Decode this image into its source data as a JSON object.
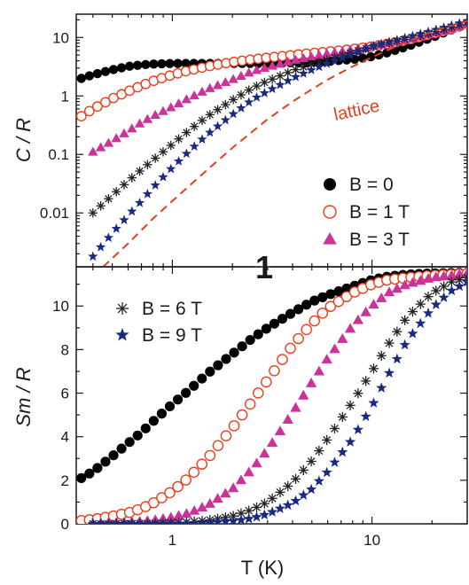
{
  "chart_data": [
    {
      "type": "scatter",
      "ylabel": "C / R",
      "yscale": "log",
      "xscale": "log",
      "xlim": [
        0.33,
        30
      ],
      "ylim": [
        0.0012,
        25
      ],
      "yticks": [
        0.01,
        0.1,
        1,
        10
      ],
      "ytick_labels": [
        "0.01",
        "0.1",
        "1",
        "10"
      ],
      "series": [
        {
          "name": "B = 0",
          "marker": "filled-circle",
          "color": "#000000",
          "x": [
            0.35,
            0.4,
            0.5,
            0.6,
            0.7,
            0.8,
            1.0,
            1.2,
            1.5,
            2,
            2.5,
            3,
            4,
            5,
            6,
            8,
            10,
            12,
            15,
            20,
            25,
            30
          ],
          "y": [
            2.0,
            2.3,
            2.8,
            3.2,
            3.4,
            3.5,
            3.6,
            3.6,
            3.6,
            3.6,
            3.6,
            3.6,
            3.7,
            3.8,
            3.9,
            4.2,
            4.7,
            5.5,
            7,
            10,
            13.5,
            17
          ]
        },
        {
          "name": "B = 1 T",
          "marker": "open-circle",
          "color": "#e8401e",
          "x": [
            0.35,
            0.4,
            0.5,
            0.6,
            0.7,
            0.8,
            1.0,
            1.2,
            1.5,
            2,
            2.5,
            3,
            4,
            5,
            6,
            8,
            10,
            12,
            15,
            20,
            25,
            30
          ],
          "y": [
            0.45,
            0.6,
            0.9,
            1.2,
            1.5,
            1.8,
            2.3,
            2.7,
            3.2,
            3.8,
            4.2,
            4.5,
            5.0,
            5.4,
            5.7,
            6.3,
            7,
            7.8,
            9,
            11.5,
            14,
            17
          ]
        },
        {
          "name": "B = 3 T",
          "marker": "filled-triangle",
          "color": "#cc3399",
          "x": [
            0.4,
            0.5,
            0.6,
            0.7,
            0.8,
            1.0,
            1.2,
            1.5,
            2,
            2.5,
            3,
            4,
            5,
            6,
            8,
            10,
            12,
            15,
            20,
            25,
            30
          ],
          "y": [
            0.11,
            0.17,
            0.25,
            0.35,
            0.45,
            0.65,
            0.9,
            1.3,
            1.9,
            2.6,
            3.1,
            4.0,
            4.7,
            5.3,
            6.2,
            7,
            7.8,
            9,
            11.5,
            14,
            17
          ]
        },
        {
          "name": "B = 6 T",
          "marker": "asterisk",
          "color": "#222222",
          "x": [
            0.4,
            0.5,
            0.6,
            0.7,
            0.8,
            1.0,
            1.2,
            1.5,
            2,
            2.5,
            3,
            4,
            5,
            6,
            8,
            10,
            12,
            15,
            20,
            25,
            30
          ],
          "y": [
            0.01,
            0.02,
            0.035,
            0.055,
            0.08,
            0.15,
            0.25,
            0.45,
            0.85,
            1.35,
            1.8,
            2.7,
            3.5,
            4.2,
            5.6,
            7,
            8,
            9.5,
            12,
            15,
            18
          ]
        },
        {
          "name": "B = 9 T",
          "marker": "star",
          "color": "#1a2a80",
          "x": [
            0.4,
            0.5,
            0.6,
            0.7,
            0.8,
            1.0,
            1.2,
            1.5,
            2,
            2.5,
            3,
            4,
            5,
            6,
            8,
            10,
            12,
            15,
            20,
            25,
            30
          ],
          "y": [
            0.0018,
            0.0045,
            0.009,
            0.016,
            0.027,
            0.06,
            0.11,
            0.22,
            0.48,
            0.85,
            1.2,
            2.0,
            2.8,
            3.6,
            5.2,
            7,
            8.3,
            10,
            13,
            16,
            19
          ]
        },
        {
          "name": "lattice",
          "marker": "dashed-line",
          "color": "#e0401e",
          "x": [
            0.45,
            0.6,
            0.8,
            1.0,
            1.5,
            2,
            3,
            4,
            5,
            6,
            8,
            10,
            15,
            20,
            25,
            30
          ],
          "y": [
            0.0012,
            0.003,
            0.008,
            0.016,
            0.055,
            0.13,
            0.4,
            0.8,
            1.3,
            1.9,
            3.2,
            4.6,
            8.5,
            12.5,
            16,
            19
          ]
        }
      ],
      "annotations": [
        "lattice",
        "1"
      ],
      "legend": {
        "placement": "bottom-right",
        "entries": [
          "B = 0",
          "B = 1 T",
          "B = 3 T"
        ]
      }
    },
    {
      "type": "scatter",
      "xlabel": "T (K)",
      "ylabel": "Sm / R",
      "xscale": "log",
      "xlim": [
        0.33,
        30
      ],
      "ylim": [
        0,
        11.8
      ],
      "yticks": [
        0,
        2,
        4,
        6,
        8,
        10
      ],
      "ytick_labels": [
        "0",
        "2",
        "4",
        "6",
        "8",
        "10"
      ],
      "xticks": [
        1,
        10
      ],
      "xtick_labels": [
        "1",
        "10"
      ],
      "series": [
        {
          "name": "B = 0",
          "marker": "filled-circle",
          "color": "#000000",
          "x": [
            0.35,
            0.4,
            0.5,
            0.6,
            0.7,
            0.8,
            1.0,
            1.2,
            1.5,
            2,
            2.5,
            3,
            4,
            5,
            6,
            8,
            10,
            12,
            15,
            20,
            25,
            30
          ],
          "y": [
            2.1,
            2.4,
            3.1,
            3.7,
            4.2,
            4.7,
            5.5,
            6.1,
            6.9,
            7.8,
            8.5,
            9.0,
            9.7,
            10.2,
            10.5,
            10.9,
            11.2,
            11.35,
            11.45,
            11.5,
            11.52,
            11.53
          ]
        },
        {
          "name": "B = 1 T",
          "marker": "open-circle",
          "color": "#e8401e",
          "x": [
            0.35,
            0.4,
            0.5,
            0.6,
            0.7,
            0.8,
            1.0,
            1.2,
            1.5,
            2,
            2.5,
            3,
            4,
            5,
            6,
            8,
            10,
            12,
            15,
            20,
            25,
            30
          ],
          "y": [
            0.15,
            0.2,
            0.35,
            0.5,
            0.7,
            0.95,
            1.5,
            2.1,
            3.0,
            4.4,
            5.6,
            6.6,
            8.2,
            9.2,
            9.9,
            10.6,
            11.0,
            11.2,
            11.3,
            11.4,
            11.45,
            11.5
          ]
        },
        {
          "name": "B = 3 T",
          "marker": "filled-triangle",
          "color": "#cc3399",
          "x": [
            0.4,
            0.5,
            0.6,
            0.7,
            0.8,
            1.0,
            1.2,
            1.5,
            2,
            2.5,
            3,
            4,
            5,
            6,
            8,
            10,
            12,
            15,
            20,
            25,
            30
          ],
          "y": [
            0.02,
            0.04,
            0.07,
            0.11,
            0.16,
            0.3,
            0.48,
            0.85,
            1.6,
            2.5,
            3.4,
            5.1,
            6.5,
            7.6,
            9.1,
            10.0,
            10.6,
            11.0,
            11.3,
            11.4,
            11.5
          ]
        },
        {
          "name": "B = 6 T",
          "marker": "asterisk",
          "color": "#222222",
          "x": [
            0.4,
            0.5,
            0.6,
            0.7,
            0.8,
            1.0,
            1.2,
            1.5,
            2,
            2.5,
            3,
            4,
            5,
            6,
            8,
            10,
            12,
            15,
            20,
            25,
            30
          ],
          "y": [
            0.0,
            0.0,
            0.01,
            0.01,
            0.02,
            0.05,
            0.08,
            0.16,
            0.35,
            0.65,
            1.0,
            1.9,
            2.9,
            3.9,
            5.6,
            7.0,
            8.2,
            9.5,
            10.6,
            11.1,
            11.3
          ]
        },
        {
          "name": "B = 9 T",
          "marker": "star",
          "color": "#1a2a80",
          "x": [
            0.4,
            0.5,
            0.6,
            0.7,
            0.8,
            1.0,
            1.2,
            1.5,
            2,
            2.5,
            3,
            4,
            5,
            6,
            8,
            10,
            12,
            15,
            20,
            25,
            30
          ],
          "y": [
            0.0,
            0.0,
            0.0,
            0.0,
            0.0,
            0.01,
            0.02,
            0.05,
            0.12,
            0.25,
            0.45,
            0.95,
            1.6,
            2.4,
            3.9,
            5.4,
            6.8,
            8.4,
            9.9,
            10.7,
            11.1
          ]
        }
      ],
      "legend": {
        "placement": "top-left",
        "entries": [
          "B = 6 T",
          "B = 9 T"
        ]
      }
    }
  ]
}
